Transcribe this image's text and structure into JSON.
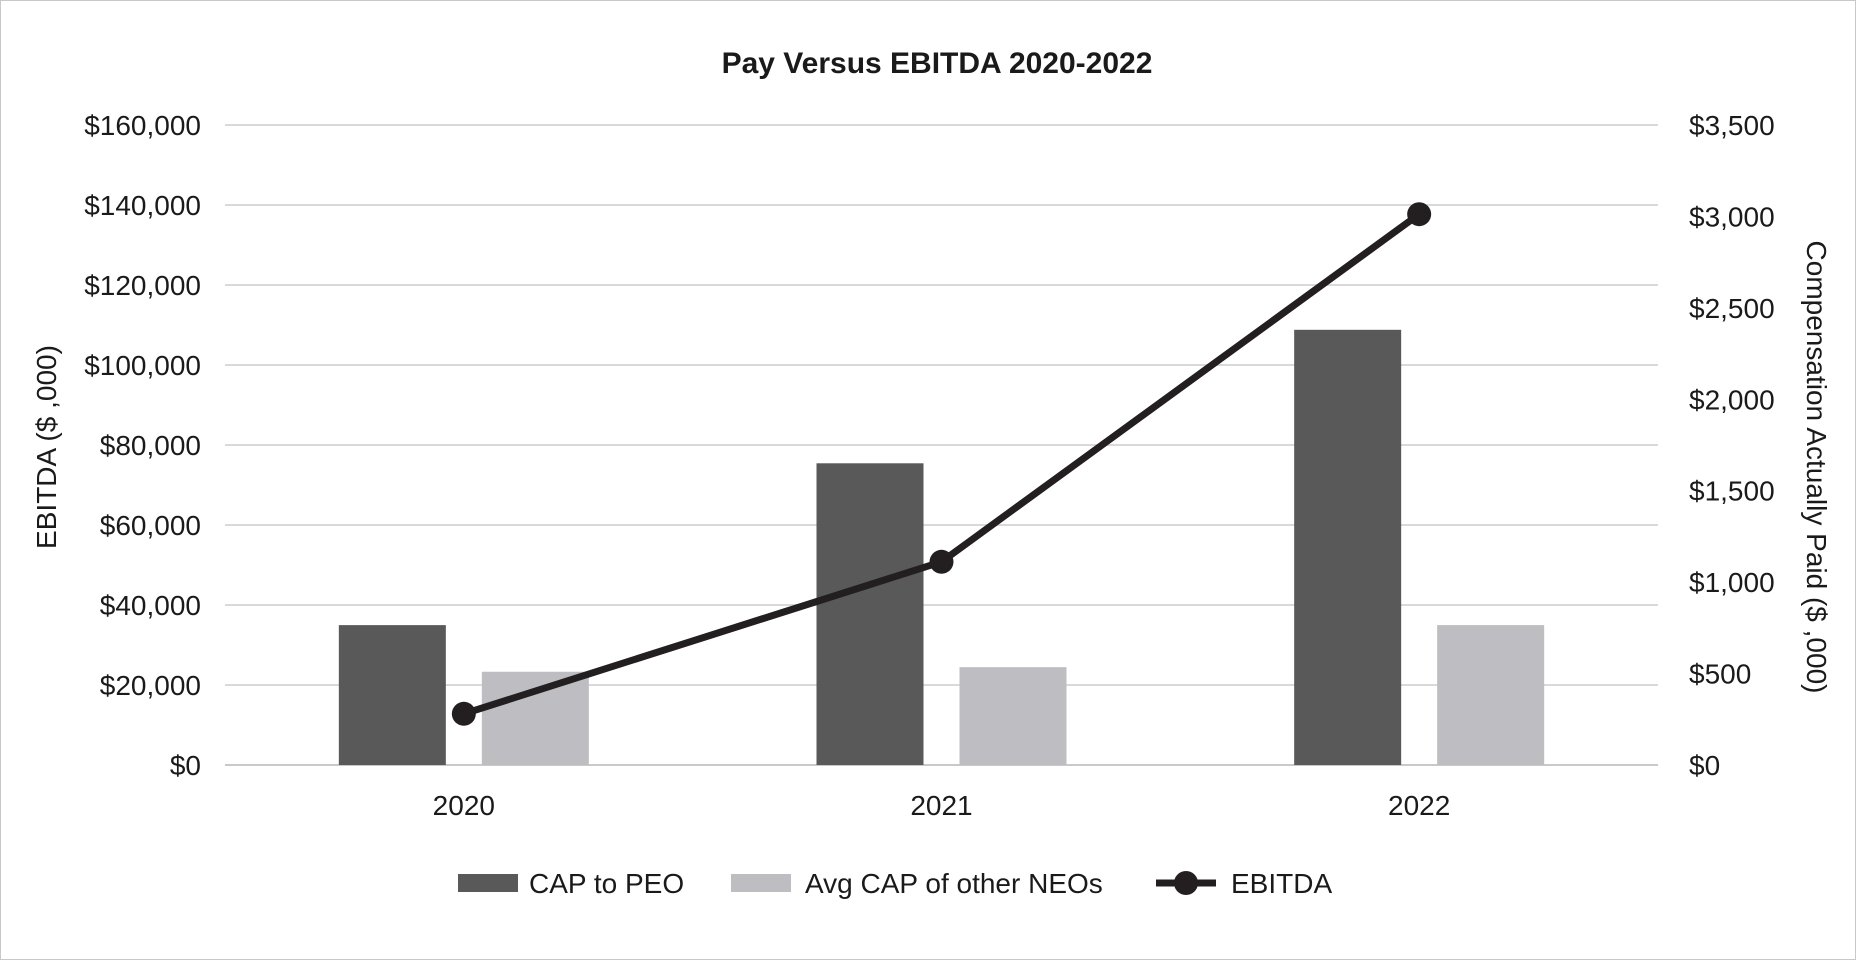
{
  "chart_data": {
    "type": "bar",
    "title": "Pay Versus EBITDA 2020-2022",
    "categories": [
      "2020",
      "2021",
      "2022"
    ],
    "ylabel_left": "EBITDA ($ ,000)",
    "ylabel_right": "Compensation Actually Paid ($ ,000)",
    "left_axis": {
      "min": 0,
      "max": 160000,
      "step": 20000,
      "tick_labels": [
        "$0",
        "$20,000",
        "$40,000",
        "$60,000",
        "$80,000",
        "$100,000",
        "$120,000",
        "$140,000",
        "$160,000"
      ]
    },
    "right_axis": {
      "min": 0,
      "max": 3500,
      "step": 500,
      "tick_labels": [
        "$0",
        "$500",
        "$1,000",
        "$1,500",
        "$2,000",
        "$2,500",
        "$3,000",
        "$3,500"
      ]
    },
    "series": [
      {
        "name": "CAP to PEO",
        "type": "bar",
        "axis": "right",
        "color": "#595959",
        "values": [
          765,
          1650,
          2380
        ]
      },
      {
        "name": "Avg CAP of other NEOs",
        "type": "bar",
        "axis": "right",
        "color": "#bebec2",
        "values": [
          510,
          535,
          765
        ]
      },
      {
        "name": "EBITDA",
        "type": "line",
        "axis": "left",
        "color": "#231f20",
        "values": [
          12800,
          50800,
          137700
        ]
      }
    ],
    "grid": true,
    "legend": "bottom"
  }
}
